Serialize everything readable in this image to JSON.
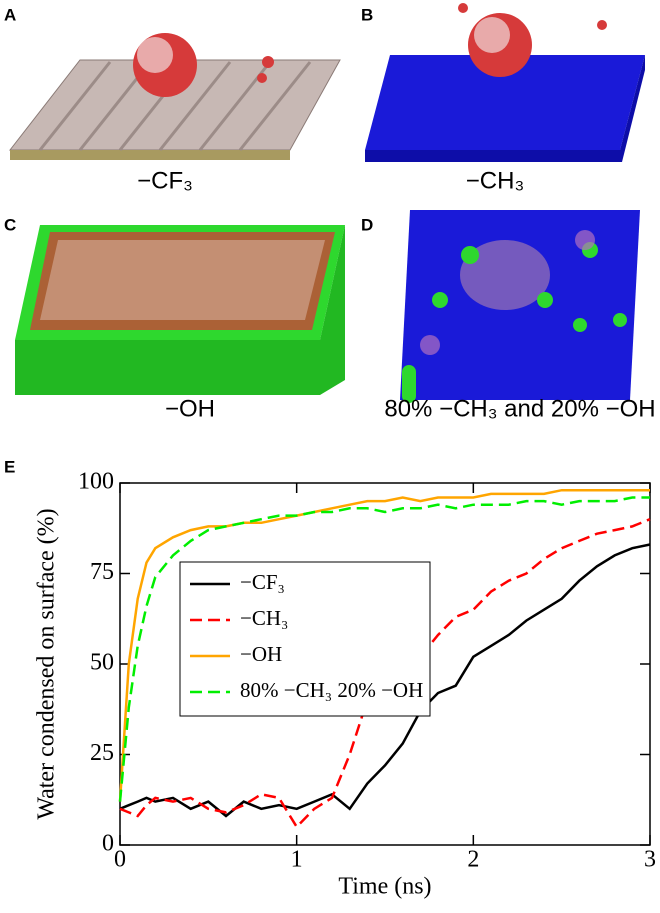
{
  "panels": [
    {
      "label": "A",
      "caption": "−CF₃"
    },
    {
      "label": "B",
      "caption": "−CH₃"
    },
    {
      "label": "C",
      "caption": "−OH"
    },
    {
      "label": "D",
      "caption": "80% −CH₃ and 20% −OH"
    }
  ],
  "chart_data": {
    "type": "line",
    "panel_label": "E",
    "x_label": "Time (ns)",
    "y_label": "Water condensed on surface (%)",
    "xlim": [
      0,
      3
    ],
    "xticks": [
      0,
      1,
      2,
      3
    ],
    "ylim": [
      0,
      100
    ],
    "yticks": [
      0,
      25,
      50,
      75,
      100
    ],
    "legend": "upper-left",
    "x": [
      0,
      0.05,
      0.1,
      0.15,
      0.2,
      0.3,
      0.4,
      0.5,
      0.6,
      0.7,
      0.8,
      0.9,
      1.0,
      1.1,
      1.2,
      1.3,
      1.4,
      1.5,
      1.6,
      1.7,
      1.8,
      1.9,
      2.0,
      2.1,
      2.2,
      2.3,
      2.4,
      2.5,
      2.6,
      2.7,
      2.8,
      2.9,
      3.0
    ],
    "series": [
      {
        "name": "−CF₃",
        "color": "#000000",
        "dash": "solid",
        "values": [
          10,
          11,
          12,
          13,
          12,
          13,
          10,
          12,
          8,
          12,
          10,
          11,
          10,
          12,
          14,
          10,
          17,
          22,
          28,
          37,
          42,
          44,
          52,
          55,
          58,
          62,
          65,
          68,
          73,
          77,
          80,
          82,
          83
        ]
      },
      {
        "name": "−CH₃",
        "color": "#ff0000",
        "dash": "dashed",
        "values": [
          10,
          9,
          8,
          11,
          13,
          12,
          13,
          10,
          9,
          11,
          14,
          13,
          5,
          10,
          13,
          25,
          40,
          45,
          50,
          52,
          58,
          63,
          65,
          70,
          73,
          75,
          79,
          82,
          84,
          86,
          87,
          88,
          90
        ]
      },
      {
        "name": "−OH",
        "color": "#ffa500",
        "dash": "solid",
        "values": [
          12,
          50,
          68,
          78,
          82,
          85,
          87,
          88,
          88,
          89,
          89,
          90,
          91,
          92,
          93,
          94,
          95,
          95,
          96,
          95,
          96,
          96,
          96,
          97,
          97,
          97,
          97,
          98,
          98,
          98,
          98,
          98,
          98
        ]
      },
      {
        "name": "80% −CH₃ 20% −OH",
        "color": "#00ee00",
        "dash": "dashed",
        "values": [
          12,
          38,
          55,
          66,
          74,
          80,
          84,
          87,
          88,
          89,
          90,
          91,
          91,
          92,
          92,
          93,
          93,
          92,
          93,
          93,
          94,
          93,
          94,
          94,
          94,
          95,
          95,
          94,
          95,
          95,
          95,
          96,
          96
        ]
      }
    ]
  }
}
